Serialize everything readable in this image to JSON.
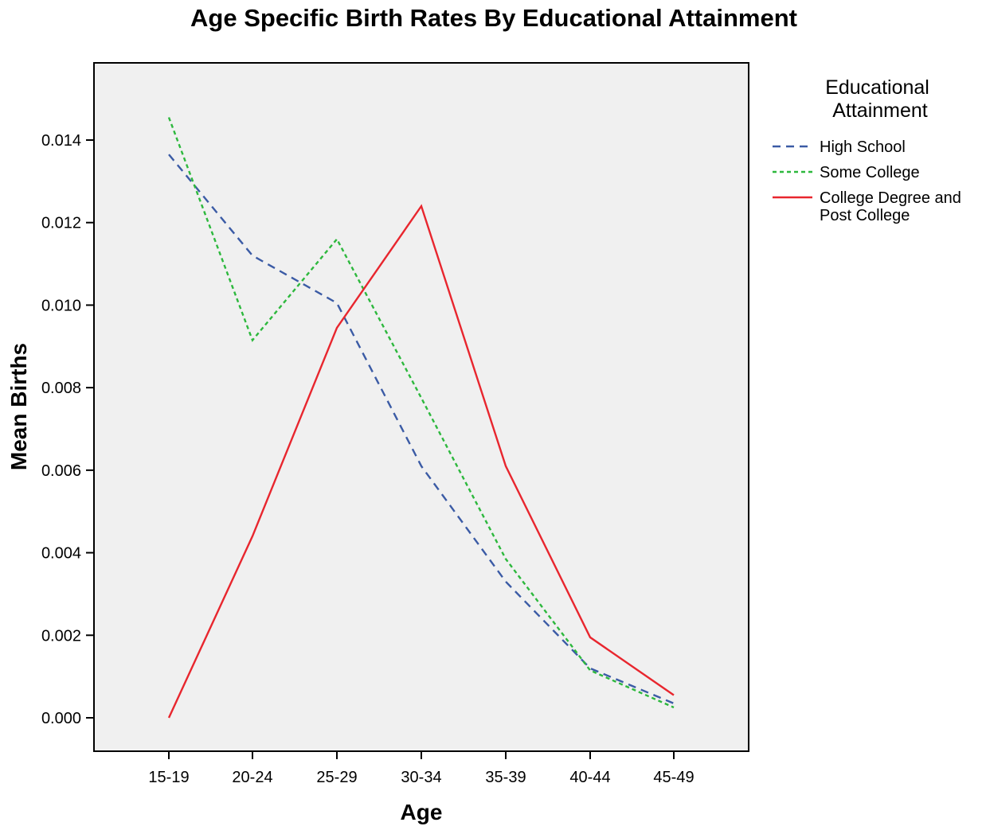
{
  "chart_data": {
    "type": "line",
    "title": "Age Specific Birth Rates By Educational Attainment",
    "xlabel": "Age",
    "ylabel": "Mean Births",
    "categories": [
      "15-19",
      "20-24",
      "25-29",
      "30-34",
      "35-39",
      "40-44",
      "45-49"
    ],
    "ylim": [
      0,
      0.0158
    ],
    "yticks": [
      "0.000",
      "0.002",
      "0.004",
      "0.006",
      "0.008",
      "0.010",
      "0.012",
      "0.014"
    ],
    "ytick_values": [
      0,
      0.002,
      0.004,
      0.006,
      0.008,
      0.01,
      0.012,
      0.014
    ],
    "grid": false,
    "legend_position": "right",
    "legend_title": [
      "Educational",
      "Attainment"
    ],
    "series": [
      {
        "name": "High School",
        "label_lines": [
          "High School"
        ],
        "values": [
          0.01365,
          0.0112,
          0.01005,
          0.0061,
          0.0033,
          0.0012,
          0.00035
        ],
        "color": "#3b5ba5",
        "style": "dashed"
      },
      {
        "name": "Some College",
        "label_lines": [
          "Some College"
        ],
        "values": [
          0.01455,
          0.00915,
          0.0116,
          0.00775,
          0.00385,
          0.00115,
          0.00025
        ],
        "color": "#2db83d",
        "style": "dotted"
      },
      {
        "name": "College Degree and Post College",
        "label_lines": [
          "College Degree and",
          "Post College"
        ],
        "values": [
          0.0,
          0.0044,
          0.00945,
          0.0124,
          0.0061,
          0.00195,
          0.00055
        ],
        "color": "#e8262e",
        "style": "solid"
      }
    ],
    "plot_background": "#f0f0f0"
  }
}
